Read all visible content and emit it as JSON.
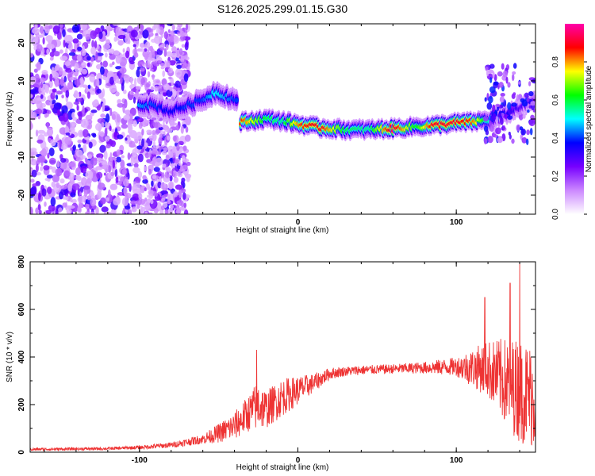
{
  "title": "S126.2025.299.01.15.G30",
  "chart_data": [
    {
      "type": "heatmap",
      "xlabel": "Height of straight line (km)",
      "ylabel": "Frequency (Hz)",
      "xlim": [
        -169,
        150
      ],
      "ylim": [
        -25,
        25
      ],
      "xticks": [
        -100,
        0,
        100
      ],
      "yticks": [
        -20,
        -10,
        0,
        10,
        20
      ],
      "colorbar": {
        "label": "Normalized spectral amplitude",
        "range": [
          0,
          1
        ],
        "ticks": [
          "0.0",
          "0.2",
          "0.4",
          "0.6",
          "0.8"
        ],
        "colors": [
          "#ffffff",
          "#cc88ff",
          "#7700ff",
          "#0000ff",
          "#00ffff",
          "#00ff00",
          "#ffff00",
          "#ff0000",
          "#ff00aa"
        ]
      },
      "ridge": [
        {
          "x": -35,
          "f": -0.8,
          "a": 0.85
        },
        {
          "x": -20,
          "f": 0.0,
          "a": 0.6
        },
        {
          "x": -10,
          "f": -0.5,
          "a": 0.55
        },
        {
          "x": 2,
          "f": -1.5,
          "a": 0.85
        },
        {
          "x": 15,
          "f": -2.3,
          "a": 0.9
        },
        {
          "x": 30,
          "f": -2.8,
          "a": 0.6
        },
        {
          "x": 45,
          "f": -2.8,
          "a": 0.55
        },
        {
          "x": 60,
          "f": -2.5,
          "a": 0.95
        },
        {
          "x": 75,
          "f": -2.0,
          "a": 0.6
        },
        {
          "x": 85,
          "f": -1.8,
          "a": 0.9
        },
        {
          "x": 100,
          "f": -1.0,
          "a": 0.9
        },
        {
          "x": 110,
          "f": -0.8,
          "a": 0.85
        },
        {
          "x": 125,
          "f": 0.0,
          "a": 0.4
        },
        {
          "x": 140,
          "f": 3.0,
          "a": 0.3
        },
        {
          "x": 150,
          "f": 5.0,
          "a": 0.25
        }
      ],
      "ridge_upper": [
        {
          "x": -100,
          "f": 4.0,
          "a": 0.45
        },
        {
          "x": -90,
          "f": 3.5,
          "a": 0.4
        },
        {
          "x": -80,
          "f": 2.0,
          "a": 0.35
        },
        {
          "x": -70,
          "f": 3.5,
          "a": 0.4
        },
        {
          "x": -60,
          "f": 5.0,
          "a": 0.4
        },
        {
          "x": -52,
          "f": 7.0,
          "a": 0.5
        },
        {
          "x": -45,
          "f": 6.0,
          "a": 0.45
        },
        {
          "x": -40,
          "f": 5.0,
          "a": 0.4
        }
      ]
    },
    {
      "type": "line",
      "xlabel": "Height of straight line (km)",
      "ylabel": "SNR (10 * v/v)",
      "xlim": [
        -169,
        150
      ],
      "ylim": [
        0,
        800
      ],
      "xticks": [
        -100,
        0,
        100
      ],
      "yticks": [
        0,
        200,
        400,
        600,
        800
      ],
      "color": "#ee3333",
      "envelope": {
        "x": [
          -169,
          -120,
          -100,
          -80,
          -60,
          -50,
          -40,
          -30,
          -25,
          -20,
          -10,
          0,
          10,
          20,
          30,
          40,
          60,
          80,
          100,
          110,
          120,
          130,
          140,
          150
        ],
        "mean": [
          12,
          15,
          20,
          30,
          55,
          80,
          110,
          170,
          200,
          180,
          230,
          260,
          290,
          330,
          340,
          345,
          350,
          355,
          360,
          355,
          350,
          300,
          260,
          230
        ],
        "spread": [
          6,
          6,
          8,
          12,
          20,
          40,
          60,
          80,
          110,
          80,
          80,
          60,
          40,
          25,
          20,
          20,
          20,
          25,
          40,
          80,
          120,
          180,
          220,
          220
        ]
      },
      "peaks": [
        {
          "x": -26,
          "y": 430
        },
        {
          "x": 134,
          "y": 710
        },
        {
          "x": 140,
          "y": 800
        },
        {
          "x": 118,
          "y": 650
        }
      ]
    }
  ]
}
